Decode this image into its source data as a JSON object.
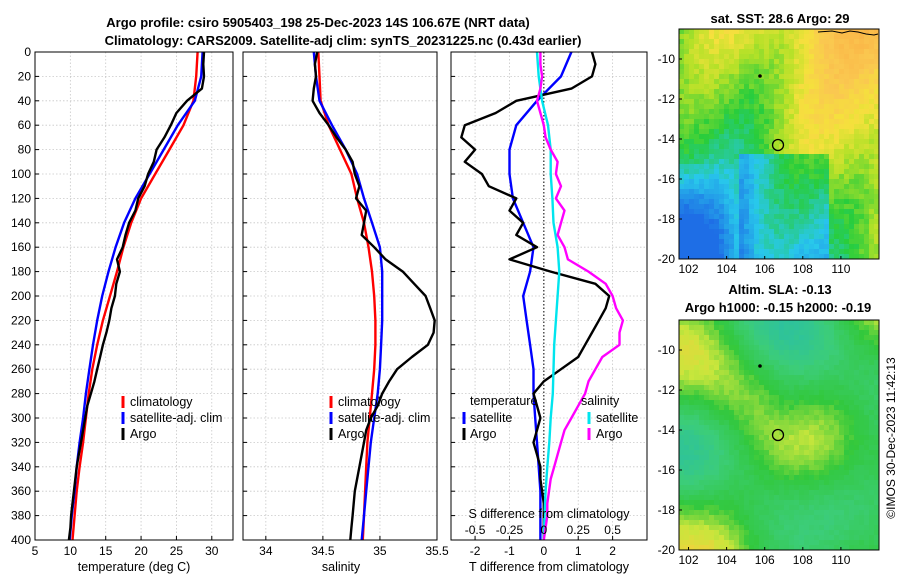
{
  "header": {
    "title_line1": "Argo profile: csiro 5905403_198 25-Dec-2023 14S 106.67E (NRT data)",
    "title_line2": "Climatology: CARS2009. Satellite-adj clim: synTS_20231225.nc (0.43d earlier)"
  },
  "footer": {
    "credit": "©IMOS 30-Dec-2023 11:42:13"
  },
  "colors": {
    "climatology": "#ff0000",
    "satellite": "#0000ff",
    "argo": "#000000",
    "satellite_salinity": "#00e5ee",
    "argo_salinity": "#ff00ff"
  },
  "chart_data": [
    {
      "type": "line",
      "panel": "temperature",
      "xlabel": "temperature (deg C)",
      "ylabel": "",
      "xlim": [
        5,
        33
      ],
      "ylim": [
        400,
        0
      ],
      "xticks": [
        5,
        10,
        15,
        20,
        25,
        30
      ],
      "yticks": [
        0,
        20,
        40,
        60,
        80,
        100,
        120,
        140,
        160,
        180,
        200,
        220,
        240,
        260,
        280,
        300,
        320,
        340,
        360,
        380,
        400
      ],
      "grid": true,
      "legend_position": "lower-right",
      "series": [
        {
          "name": "climatology",
          "color": "#ff0000",
          "depth": [
            0,
            20,
            40,
            60,
            80,
            100,
            120,
            140,
            160,
            180,
            200,
            220,
            240,
            260,
            280,
            300,
            320,
            340,
            360,
            380,
            400
          ],
          "values": [
            28.0,
            27.8,
            27.4,
            26.0,
            24.0,
            22.0,
            20.0,
            18.6,
            17.5,
            16.6,
            15.6,
            14.6,
            13.8,
            13.1,
            12.6,
            12.2,
            11.8,
            11.3,
            10.9,
            10.6,
            10.3
          ]
        },
        {
          "name": "satellite-adj. clim",
          "color": "#0000ff",
          "depth": [
            0,
            20,
            40,
            60,
            80,
            100,
            120,
            140,
            160,
            180,
            200,
            220,
            240,
            260,
            280,
            300,
            320,
            340,
            360,
            380,
            400
          ],
          "values": [
            28.7,
            28.5,
            27.6,
            25.2,
            23.2,
            21.2,
            19.2,
            17.6,
            16.4,
            15.4,
            14.5,
            13.8,
            13.2,
            12.7,
            12.2,
            11.8,
            11.3,
            10.9,
            10.6,
            10.2,
            9.9
          ]
        },
        {
          "name": "Argo",
          "color": "#000000",
          "depth": [
            0,
            10,
            20,
            30,
            40,
            50,
            60,
            70,
            80,
            90,
            100,
            110,
            120,
            130,
            140,
            150,
            160,
            170,
            180,
            190,
            200,
            210,
            220,
            230,
            240,
            250,
            260,
            270,
            280,
            290,
            300,
            310,
            320,
            330,
            340,
            350,
            360,
            370,
            380,
            390,
            400
          ],
          "values": [
            28.9,
            28.8,
            28.9,
            28.6,
            26.5,
            25.0,
            24.2,
            23.3,
            22.2,
            21.8,
            21.0,
            20.5,
            19.6,
            19.2,
            18.3,
            17.8,
            17.4,
            16.6,
            17.0,
            16.5,
            16.3,
            15.8,
            15.5,
            15.1,
            14.6,
            14.2,
            13.8,
            13.4,
            12.9,
            12.4,
            12.1,
            11.8,
            11.5,
            11.2,
            10.9,
            10.7,
            10.5,
            10.3,
            10.1,
            10.0,
            9.8
          ]
        }
      ]
    },
    {
      "type": "line",
      "panel": "salinity",
      "xlabel": "salinity",
      "xlim": [
        33.8,
        35.5
      ],
      "ylim": [
        400,
        0
      ],
      "xticks": [
        34,
        34.5,
        35,
        35.5
      ],
      "grid": true,
      "legend_position": "lower-right",
      "series": [
        {
          "name": "climatology",
          "color": "#ff0000",
          "depth": [
            0,
            20,
            40,
            60,
            80,
            100,
            120,
            140,
            160,
            180,
            200,
            220,
            240,
            260,
            280,
            300,
            320,
            340,
            360,
            380,
            400
          ],
          "values": [
            34.46,
            34.47,
            34.48,
            34.55,
            34.65,
            34.75,
            34.8,
            34.86,
            34.9,
            34.93,
            34.95,
            34.96,
            34.96,
            34.95,
            34.93,
            34.91,
            34.89,
            34.88,
            34.87,
            34.86,
            34.85
          ]
        },
        {
          "name": "satellite-adj. clim",
          "color": "#0000ff",
          "depth": [
            0,
            20,
            40,
            60,
            80,
            100,
            120,
            140,
            160,
            180,
            200,
            220,
            240,
            260,
            280,
            300,
            320,
            340,
            360,
            380,
            400
          ],
          "values": [
            34.42,
            34.44,
            34.47,
            34.58,
            34.7,
            34.8,
            34.86,
            34.93,
            35.0,
            35.02,
            35.02,
            35.02,
            35.01,
            35.0,
            34.98,
            34.95,
            34.92,
            34.9,
            34.88,
            34.86,
            34.84
          ]
        },
        {
          "name": "Argo",
          "color": "#000000",
          "depth": [
            0,
            10,
            20,
            30,
            40,
            50,
            60,
            70,
            80,
            90,
            100,
            110,
            120,
            130,
            140,
            150,
            160,
            170,
            180,
            190,
            200,
            210,
            220,
            230,
            240,
            250,
            260,
            270,
            280,
            290,
            300,
            310,
            320,
            330,
            340,
            350,
            360,
            370,
            380,
            390,
            400
          ],
          "values": [
            34.45,
            34.43,
            34.44,
            34.42,
            34.41,
            34.47,
            34.55,
            34.62,
            34.7,
            34.76,
            34.78,
            34.82,
            34.79,
            34.88,
            34.86,
            34.84,
            34.95,
            35.05,
            35.2,
            35.3,
            35.4,
            35.44,
            35.48,
            35.47,
            35.42,
            35.28,
            35.15,
            35.08,
            35.02,
            34.98,
            34.92,
            34.88,
            34.86,
            34.84,
            34.82,
            34.8,
            34.78,
            34.77,
            34.76,
            34.75,
            34.74
          ]
        }
      ]
    },
    {
      "type": "line",
      "panel": "difference",
      "xlabel": "T difference from climatology",
      "xlabel_top": "S difference from climatology",
      "xlim": [
        -2.7,
        3.0
      ],
      "ylim": [
        400,
        0
      ],
      "xticks": [
        -2,
        -1,
        0,
        1,
        2
      ],
      "s_xticks_labels": [
        "-0.5",
        "-0.25",
        "0",
        "0.25",
        "0.5"
      ],
      "s_xticks_positions": [
        -2,
        -1,
        0,
        1,
        2
      ],
      "grid": true,
      "legend_temperature_title": "temperature",
      "legend_salinity_title": "salinity",
      "series": [
        {
          "name": "temperature satellite",
          "label": "satellite",
          "color": "#0000ff",
          "depth": [
            0,
            20,
            40,
            60,
            80,
            100,
            120,
            140,
            160,
            180,
            200,
            220,
            240,
            260,
            280,
            300,
            320,
            340,
            360,
            380,
            400
          ],
          "values": [
            0.8,
            0.5,
            -0.2,
            -0.8,
            -1.0,
            -1.0,
            -0.9,
            -0.6,
            -0.3,
            -0.4,
            -0.6,
            -0.5,
            -0.4,
            -0.3,
            -0.3,
            -0.25,
            -0.2,
            -0.15,
            -0.1,
            -0.1,
            -0.1
          ]
        },
        {
          "name": "temperature Argo",
          "label": "Argo",
          "color": "#000000",
          "depth": [
            0,
            10,
            20,
            30,
            40,
            50,
            60,
            70,
            80,
            90,
            100,
            110,
            120,
            130,
            140,
            150,
            160,
            170,
            180,
            190,
            200,
            210,
            220,
            230,
            240,
            250,
            260,
            270,
            280,
            290,
            300,
            310,
            320,
            330,
            340,
            350,
            360,
            370,
            380,
            390,
            400
          ],
          "values": [
            1.4,
            1.5,
            1.4,
            0.8,
            -0.8,
            -1.4,
            -2.3,
            -2.4,
            -2.0,
            -2.3,
            -1.8,
            -1.6,
            -0.8,
            -1.0,
            -0.6,
            -0.8,
            -0.2,
            -1.0,
            0.2,
            1.5,
            1.9,
            1.8,
            1.6,
            1.4,
            1.2,
            1.0,
            0.5,
            0.0,
            -0.3,
            -0.2,
            -0.1,
            -0.2,
            -0.3,
            -0.2,
            -0.1,
            -0.1,
            -0.05,
            0.0,
            0.0,
            0.0,
            0.0
          ]
        },
        {
          "name": "salinity satellite",
          "label": "satellite",
          "color": "#00e5ee",
          "depth": [
            0,
            20,
            40,
            60,
            80,
            100,
            120,
            140,
            160,
            180,
            200,
            220,
            240,
            260,
            280,
            300,
            320,
            340,
            360,
            380,
            400
          ],
          "values": [
            -0.2,
            -0.15,
            -0.05,
            0.12,
            0.2,
            0.2,
            0.25,
            0.28,
            0.4,
            0.45,
            0.4,
            0.35,
            0.3,
            0.28,
            0.26,
            0.2,
            0.16,
            0.1,
            0.05,
            0.02,
            0.0
          ]
        },
        {
          "name": "salinity Argo",
          "label": "Argo",
          "color": "#ff00ff",
          "depth": [
            0,
            10,
            20,
            30,
            40,
            50,
            60,
            70,
            80,
            90,
            100,
            110,
            120,
            130,
            140,
            150,
            160,
            170,
            180,
            190,
            200,
            210,
            220,
            230,
            240,
            250,
            260,
            270,
            280,
            290,
            300,
            310,
            320,
            330,
            340,
            350,
            360,
            370,
            380,
            390,
            400
          ],
          "values": [
            -0.1,
            -0.1,
            -0.05,
            -0.1,
            -0.2,
            -0.1,
            0.0,
            0.05,
            0.2,
            0.4,
            0.35,
            0.5,
            0.35,
            0.6,
            0.5,
            0.4,
            0.6,
            0.7,
            1.3,
            1.8,
            2.0,
            2.1,
            2.3,
            2.2,
            2.2,
            1.7,
            1.5,
            1.3,
            1.2,
            1.0,
            0.8,
            0.6,
            0.5,
            0.4,
            0.3,
            0.2,
            0.15,
            0.1,
            0.1,
            0.05,
            0.0
          ]
        }
      ]
    },
    {
      "type": "heatmap",
      "panel": "sst_map",
      "title": "sat. SST: 28.6 Argo: 29",
      "xticks": [
        "102",
        "104",
        "106",
        "108",
        "110"
      ],
      "yticks": [
        "-10",
        "-12",
        "-14",
        "-16",
        "-18",
        "-20"
      ],
      "xlim": [
        101.5,
        112
      ],
      "ylim": [
        -20,
        -8.5
      ],
      "argo_position": [
        106.67,
        -14
      ]
    },
    {
      "type": "heatmap",
      "panel": "sla_map",
      "title_line1": "Altim. SLA: -0.13",
      "title_line2": "Argo h1000: -0.15 h2000: -0.19",
      "xticks": [
        "102",
        "104",
        "106",
        "108",
        "110"
      ],
      "yticks": [
        "-10",
        "-12",
        "-14",
        "-16",
        "-18",
        "-20"
      ],
      "xlim": [
        101.5,
        112
      ],
      "ylim": [
        -20,
        -8.5
      ],
      "argo_position": [
        106.67,
        -14
      ]
    }
  ]
}
